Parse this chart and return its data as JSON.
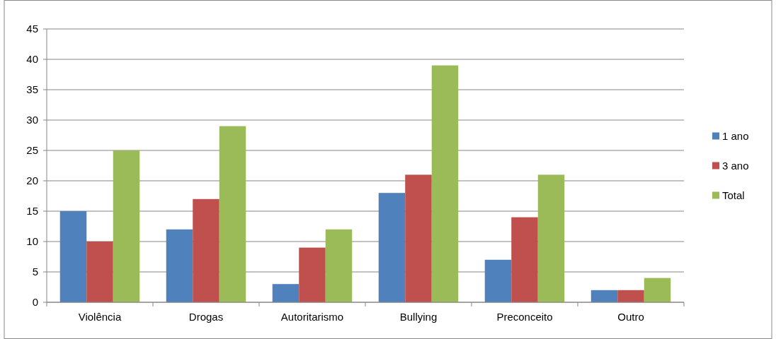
{
  "chart_data": {
    "type": "bar",
    "categories": [
      "Violência",
      "Drogas",
      "Autoritarismo",
      "Bullying",
      "Preconceito",
      "Outro"
    ],
    "series": [
      {
        "name": "1 ano",
        "color": "#4f81bd",
        "values": [
          15,
          12,
          3,
          18,
          7,
          2
        ]
      },
      {
        "name": "3 ano",
        "color": "#c0504d",
        "values": [
          10,
          17,
          9,
          21,
          14,
          2
        ]
      },
      {
        "name": "Total",
        "color": "#9bbb59",
        "values": [
          25,
          29,
          12,
          39,
          21,
          4
        ]
      }
    ],
    "ylim": [
      0,
      45
    ],
    "yticks": [
      0,
      5,
      10,
      15,
      20,
      25,
      30,
      35,
      40,
      45
    ],
    "grid": "y",
    "legend": "right"
  }
}
